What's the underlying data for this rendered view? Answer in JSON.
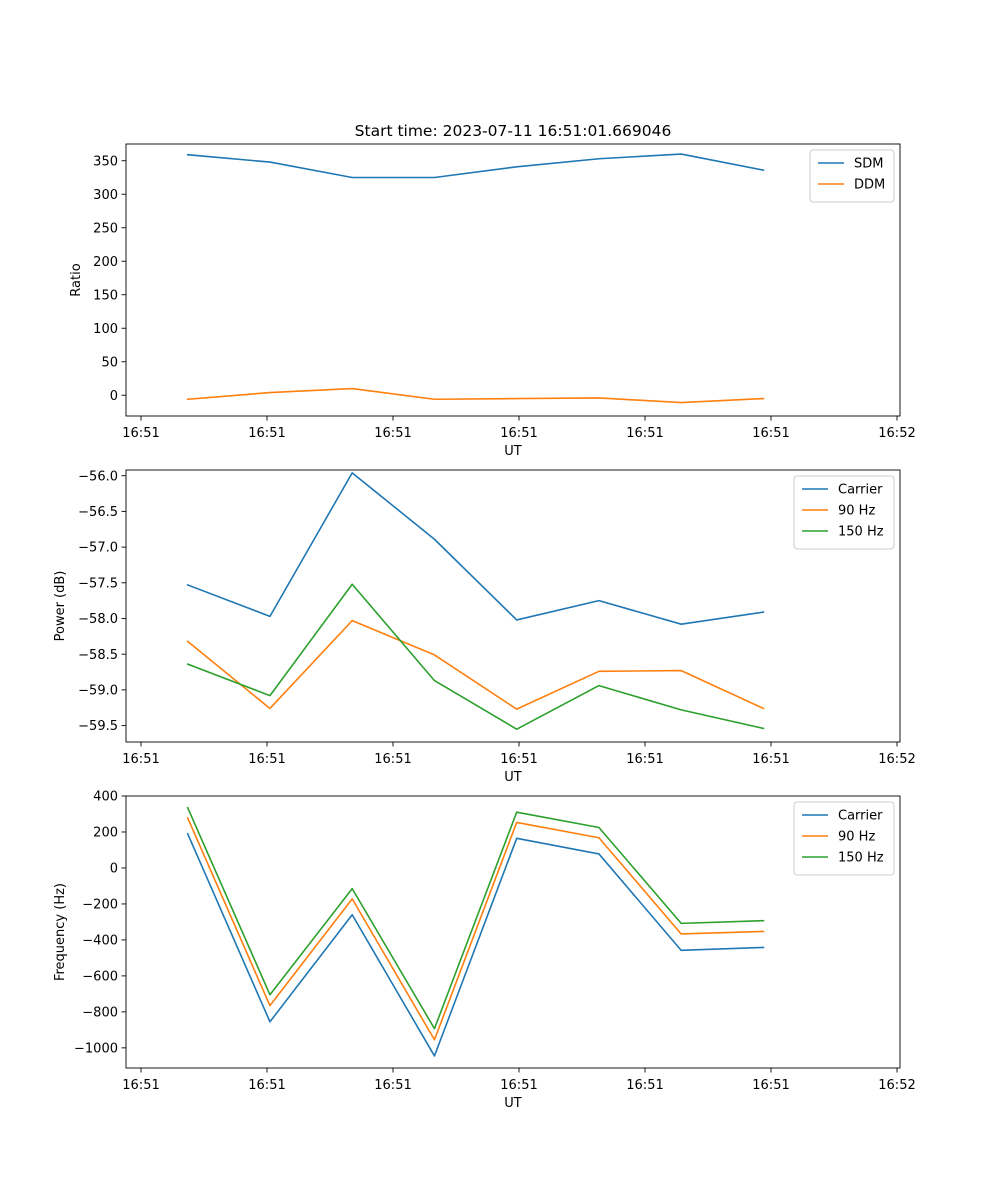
{
  "chart_data": [
    {
      "type": "line",
      "title": "Start time: 2023-07-11 16:51:01.669046",
      "xlabel": "UT",
      "ylabel": "Ratio",
      "x_tick_labels": [
        "16:51",
        "16:51",
        "16:51",
        "16:51",
        "16:51",
        "16:51",
        "16:52"
      ],
      "x": [
        1,
        2,
        3,
        4,
        5,
        6,
        7,
        8
      ],
      "xlim": [
        0.25,
        9.66
      ],
      "ylim": [
        -31,
        375
      ],
      "yticks": [
        0,
        50,
        100,
        150,
        200,
        250,
        300,
        350
      ],
      "legend_position": "upper right",
      "series": [
        {
          "name": "SDM",
          "color": "#1f77b4",
          "values": [
            359,
            348,
            325,
            325,
            341,
            353,
            360,
            336
          ]
        },
        {
          "name": "DDM",
          "color": "#ff7f0e",
          "values": [
            -6,
            4,
            10,
            -6,
            -5,
            -4,
            -11,
            -5
          ]
        }
      ]
    },
    {
      "type": "line",
      "title": "",
      "xlabel": "UT",
      "ylabel": "Power (dB)",
      "x_tick_labels": [
        "16:51",
        "16:51",
        "16:51",
        "16:51",
        "16:51",
        "16:51",
        "16:52"
      ],
      "x": [
        1,
        2,
        3,
        4,
        5,
        6,
        7,
        8
      ],
      "xlim": [
        0.25,
        9.66
      ],
      "ylim": [
        -59.73,
        -55.92
      ],
      "yticks": [
        -59.5,
        -59.0,
        -58.5,
        -58.0,
        -57.5,
        -57.0,
        -56.5,
        -56.0
      ],
      "ytick_labels": [
        "−59.5",
        "−59.0",
        "−58.5",
        "−58.0",
        "−57.5",
        "−57.0",
        "−56.5",
        "−56.0"
      ],
      "legend_position": "upper right",
      "series": [
        {
          "name": "Carrier",
          "color": "#1f77b4",
          "values": [
            -57.53,
            -57.97,
            -55.96,
            -56.89,
            -58.02,
            -57.75,
            -58.08,
            -57.91
          ]
        },
        {
          "name": "90 Hz",
          "color": "#ff7f0e",
          "values": [
            -58.32,
            -59.26,
            -58.03,
            -58.51,
            -59.27,
            -58.74,
            -58.73,
            -59.26
          ]
        },
        {
          "name": "150 Hz",
          "color": "#2ca02c",
          "values": [
            -58.64,
            -59.08,
            -57.52,
            -58.87,
            -59.55,
            -58.94,
            -59.28,
            -59.54
          ]
        }
      ]
    },
    {
      "type": "line",
      "title": "",
      "xlabel": "UT",
      "ylabel": "Frequency (Hz)",
      "x_tick_labels": [
        "16:51",
        "16:51",
        "16:51",
        "16:51",
        "16:51",
        "16:51",
        "16:52"
      ],
      "x": [
        1,
        2,
        3,
        4,
        5,
        6,
        7,
        8
      ],
      "xlim": [
        0.25,
        9.66
      ],
      "ylim": [
        -1112,
        400
      ],
      "yticks": [
        -1000,
        -800,
        -600,
        -400,
        -200,
        0,
        200,
        400
      ],
      "ytick_labels": [
        "−1000",
        "−800",
        "−600",
        "−400",
        "−200",
        "0",
        "200",
        "400"
      ],
      "legend_position": "upper right",
      "series": [
        {
          "name": "Carrier",
          "color": "#1f77b4",
          "values": [
            190,
            -855,
            -260,
            -1045,
            165,
            78,
            -458,
            -442
          ]
        },
        {
          "name": "90 Hz",
          "color": "#ff7f0e",
          "values": [
            278,
            -765,
            -172,
            -955,
            253,
            168,
            -367,
            -353
          ]
        },
        {
          "name": "150 Hz",
          "color": "#2ca02c",
          "values": [
            335,
            -705,
            -115,
            -893,
            310,
            225,
            -308,
            -293
          ]
        }
      ]
    }
  ]
}
